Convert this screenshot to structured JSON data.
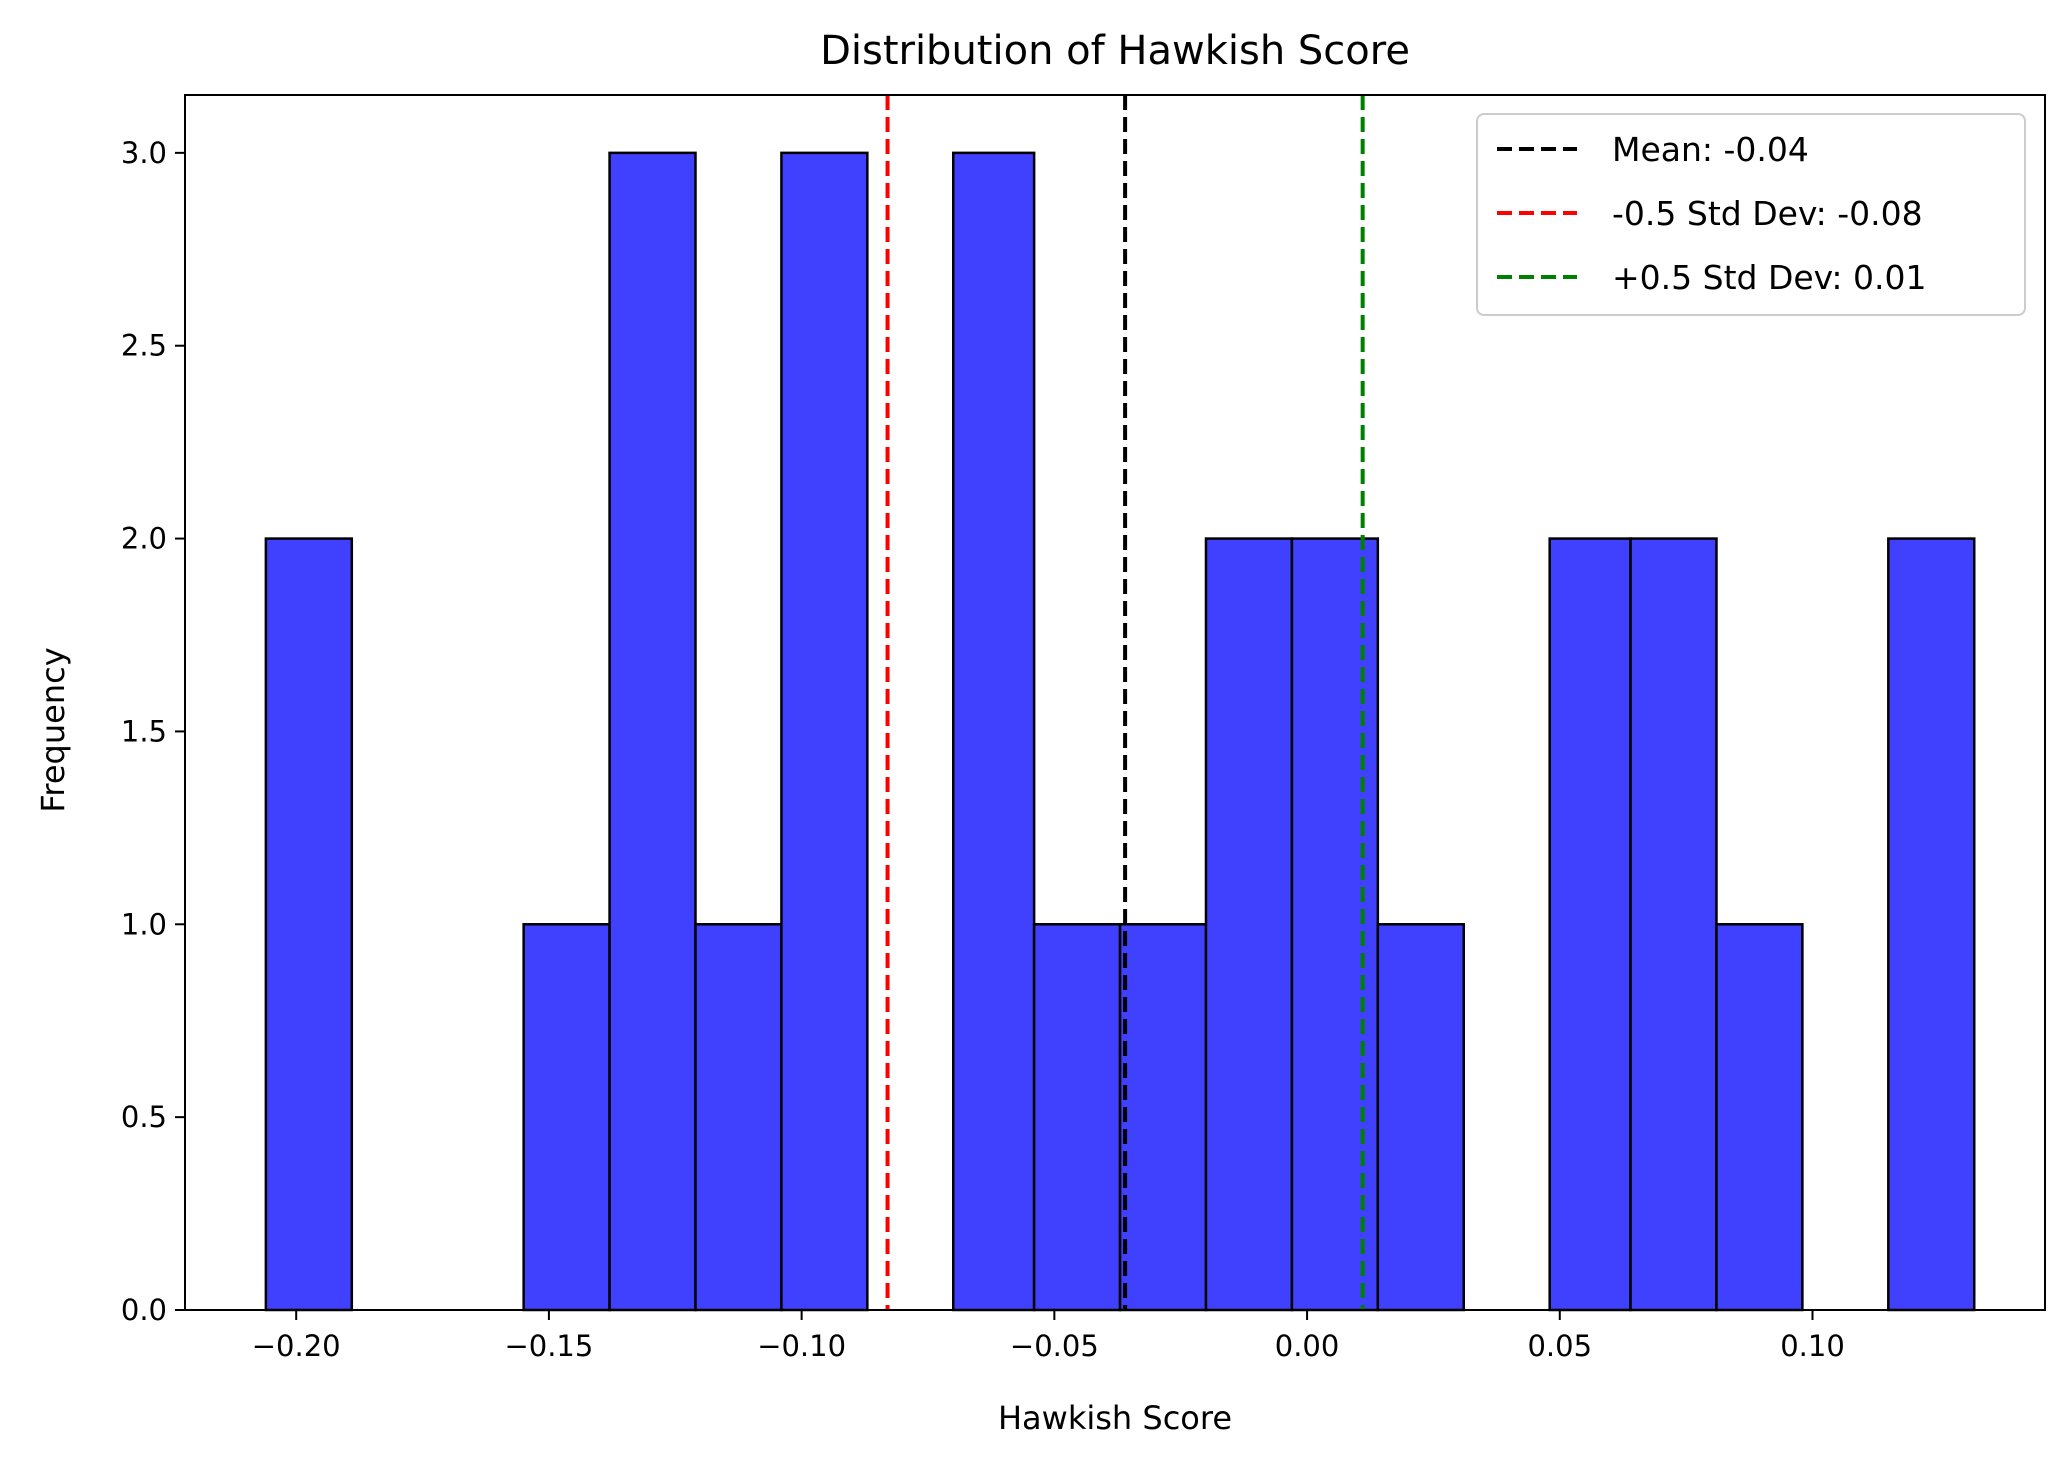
{
  "chart_data": {
    "type": "bar",
    "subtype": "histogram",
    "title": "Distribution of Hawkish Score",
    "xlabel": "Hawkish Score",
    "ylabel": "Frequency",
    "xlim": [
      -0.222,
      0.146
    ],
    "ylim": [
      0,
      3.15
    ],
    "xticks": [
      -0.2,
      -0.15,
      -0.1,
      -0.05,
      0.0,
      0.05,
      0.1
    ],
    "xtick_labels": [
      "−0.20",
      "−0.15",
      "−0.10",
      "−0.05",
      "0.00",
      "0.05",
      "0.10"
    ],
    "yticks": [
      0.0,
      0.5,
      1.0,
      1.5,
      2.0,
      2.5,
      3.0
    ],
    "ytick_labels": [
      "0.0",
      "0.5",
      "1.0",
      "1.5",
      "2.0",
      "2.5",
      "3.0"
    ],
    "bin_edges": [
      -0.206,
      -0.189,
      -0.172,
      -0.155,
      -0.138,
      -0.121,
      -0.104,
      -0.087,
      -0.07,
      -0.054,
      -0.037,
      -0.02,
      -0.003,
      0.014,
      0.031,
      0.048,
      0.064,
      0.081,
      0.098,
      0.115,
      0.132
    ],
    "counts": [
      2,
      0,
      0,
      1,
      3,
      1,
      3,
      0,
      3,
      1,
      1,
      2,
      2,
      1,
      0,
      2,
      2,
      1,
      0,
      2
    ],
    "bar_color": "#4040ff",
    "bar_edge_color": "#000000",
    "vlines": [
      {
        "label": "Mean: -0.04",
        "x": -0.036,
        "color": "#000000"
      },
      {
        "label": "-0.5 Std Dev: -0.08",
        "x": -0.083,
        "color": "#ff0000"
      },
      {
        "label": "+0.5 Std Dev: 0.01",
        "x": 0.011,
        "color": "#008000"
      }
    ],
    "legend_position": "top-right",
    "grid": false
  }
}
